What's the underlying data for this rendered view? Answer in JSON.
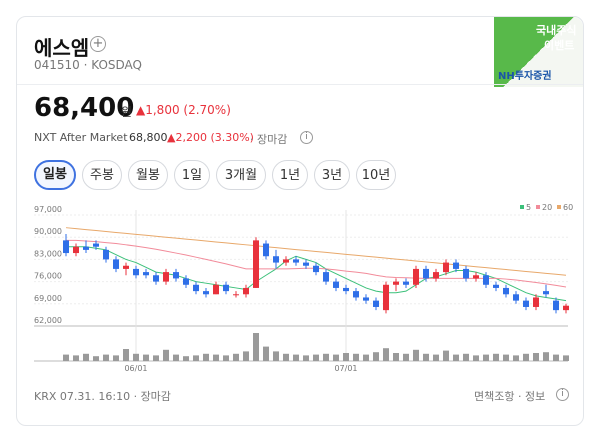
{
  "header": {
    "name": "에스엠",
    "code": "041510 · KOSDAQ",
    "badge": {
      "line1": "국내주식",
      "line2": "이벤트",
      "brand": "NH투자증권"
    }
  },
  "price": {
    "value": "68,400",
    "unit": "원",
    "change": "▲1,800 (2.70%)"
  },
  "after_market": {
    "label": "NXT After Market",
    "price": "68,800",
    "change": "▲2,200 (3.30%)",
    "status": "· 장마감"
  },
  "tabs": [
    "일봉",
    "주봉",
    "월봉",
    "1일",
    "3개월",
    "1년",
    "3년",
    "10년"
  ],
  "chart_data": {
    "type": "candlestick",
    "categories": [
      null,
      null,
      null,
      null,
      null,
      null,
      null,
      "06/01",
      null,
      null,
      null,
      null,
      null,
      null,
      null,
      null,
      null,
      null,
      null,
      null,
      null,
      null,
      null,
      null,
      null,
      null,
      null,
      null,
      "07/01",
      null,
      null,
      null,
      null,
      null,
      null,
      null,
      null,
      null,
      null,
      null,
      null,
      null,
      null,
      null,
      null,
      null,
      null,
      null,
      null,
      null,
      null
    ],
    "open": [
      89000,
      85000,
      87000,
      88000,
      86000,
      83000,
      80000,
      80000,
      79000,
      78000,
      76000,
      79000,
      77000,
      75000,
      73000,
      72000,
      75000,
      72000,
      72000,
      74000,
      88000,
      84000,
      82000,
      83000,
      82000,
      81000,
      79000,
      76000,
      74000,
      73000,
      71000,
      70000,
      67000,
      75000,
      76000,
      75000,
      80000,
      77000,
      79000,
      82000,
      80000,
      77000,
      78000,
      75000,
      74000,
      72000,
      70000,
      68000,
      73000,
      70000,
      67000
    ],
    "high": [
      91000,
      88000,
      89000,
      89000,
      87000,
      84000,
      82000,
      81000,
      80000,
      79000,
      80000,
      80000,
      78000,
      76000,
      74000,
      76000,
      76000,
      73000,
      75000,
      90000,
      89000,
      86000,
      84000,
      84000,
      83000,
      82000,
      80000,
      77000,
      75000,
      74000,
      72000,
      71000,
      76000,
      77000,
      77000,
      81000,
      81000,
      80000,
      83000,
      83000,
      81000,
      79000,
      79000,
      76000,
      75000,
      73000,
      71000,
      72000,
      75000,
      71000,
      69000
    ],
    "low": [
      84000,
      84000,
      85000,
      86000,
      82000,
      79000,
      78000,
      77000,
      77000,
      75000,
      75000,
      76000,
      74000,
      72000,
      71000,
      72000,
      72000,
      71000,
      71000,
      74000,
      83000,
      80000,
      81000,
      81000,
      80000,
      78000,
      75000,
      73000,
      72000,
      70000,
      69000,
      67000,
      66000,
      73000,
      74000,
      74000,
      76000,
      76000,
      78000,
      79000,
      76000,
      76000,
      74000,
      73000,
      71000,
      69000,
      67000,
      67000,
      71000,
      66000,
      66000
    ],
    "close": [
      85000,
      87000,
      86000,
      87000,
      83000,
      80000,
      81000,
      78000,
      78000,
      76000,
      79000,
      77000,
      75000,
      73000,
      72000,
      75000,
      73000,
      72000,
      74000,
      89000,
      84000,
      82000,
      83000,
      82000,
      81000,
      79000,
      76000,
      74000,
      73000,
      71000,
      70000,
      68000,
      75000,
      76000,
      75000,
      80000,
      77000,
      79000,
      82000,
      80000,
      77000,
      78000,
      75000,
      74000,
      72000,
      70000,
      68000,
      71000,
      72000,
      67000,
      68400
    ],
    "volume": [
      8,
      7,
      9,
      6,
      8,
      7,
      15,
      9,
      8,
      7,
      14,
      8,
      6,
      7,
      9,
      8,
      7,
      9,
      12,
      35,
      18,
      12,
      9,
      8,
      7,
      8,
      9,
      8,
      10,
      9,
      8,
      11,
      16,
      10,
      9,
      14,
      9,
      8,
      13,
      8,
      9,
      7,
      8,
      9,
      8,
      7,
      9,
      10,
      11,
      8,
      7
    ],
    "series": [
      {
        "name": "5",
        "color": "#3cc07a",
        "values": [
          87000,
          87000,
          87000,
          86500,
          86000,
          84500,
          83000,
          82000,
          80500,
          79000,
          78500,
          78000,
          77000,
          76000,
          75500,
          75000,
          74500,
          74000,
          73500,
          76000,
          78000,
          80000,
          82500,
          84000,
          83000,
          82000,
          80000,
          78500,
          77000,
          75500,
          74000,
          73000,
          72500,
          72500,
          73000,
          75000,
          77000,
          77500,
          78500,
          79500,
          79500,
          79000,
          78000,
          77000,
          75500,
          74000,
          72500,
          71500,
          71000,
          70500,
          70000
        ]
      },
      {
        "name": "20",
        "color": "#f28b9a",
        "values": [
          89000,
          89000,
          88800,
          88600,
          88300,
          88000,
          87600,
          87200,
          86700,
          86200,
          85600,
          85000,
          84400,
          83700,
          83000,
          82300,
          81600,
          80800,
          80000,
          80000,
          80000,
          80000,
          80000,
          80100,
          80200,
          80200,
          80000,
          79700,
          79300,
          79000,
          78600,
          78000,
          77500,
          77300,
          77200,
          77100,
          77000,
          77000,
          77000,
          77000,
          77000,
          77000,
          77000,
          77000,
          76800,
          76500,
          76100,
          75700,
          75300,
          74800,
          74300
        ]
      },
      {
        "name": "60",
        "color": "#e8a86a",
        "values": [
          93000,
          92700,
          92400,
          92100,
          91800,
          91500,
          91200,
          90900,
          90600,
          90300,
          90000,
          89700,
          89400,
          89100,
          88800,
          88500,
          88200,
          87900,
          87600,
          87300,
          87000,
          86700,
          86400,
          86100,
          85800,
          85500,
          85200,
          84900,
          84600,
          84300,
          84000,
          83700,
          83400,
          83100,
          82800,
          82500,
          82200,
          81900,
          81600,
          81300,
          81000,
          80700,
          80400,
          80100,
          79800,
          79500,
          79200,
          78900,
          78600,
          78300,
          78000
        ]
      }
    ],
    "up_color": "#e8323c",
    "down_color": "#2f6fe8",
    "ylim": [
      62000,
      97000
    ],
    "yticks": [
      {
        "value": 62000,
        "label": "62,000"
      },
      {
        "value": 69000,
        "label": "69,000"
      },
      {
        "value": 76000,
        "label": "76,000"
      },
      {
        "value": 83000,
        "label": "83,000"
      },
      {
        "value": 90000,
        "label": "90,000"
      },
      {
        "value": 97000,
        "label": "97,000"
      }
    ],
    "grid": true
  },
  "footer": {
    "left": "KRX 07.31. 16:10 · 장마감",
    "right": "면책조항 · 정보"
  }
}
